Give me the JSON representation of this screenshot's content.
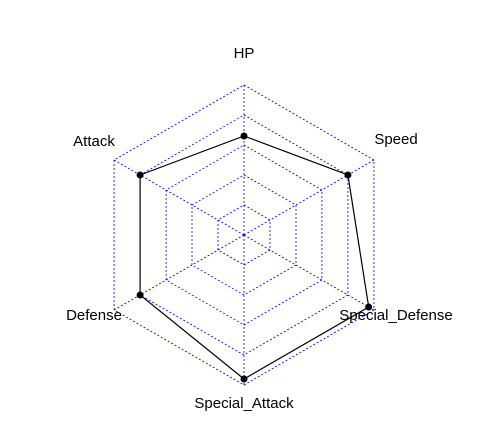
{
  "chart_data": {
    "type": "radar",
    "axes": [
      "HP",
      "Speed",
      "Special_Defense",
      "Special_Attack",
      "Defense",
      "Attack"
    ],
    "range": [
      0,
      5
    ],
    "grid_levels": 5,
    "series": [
      {
        "values": [
          3.3,
          4.0,
          4.8,
          4.8,
          4.0,
          4.0
        ]
      }
    ],
    "colors": {
      "grid": "#0000cc",
      "series_line": "#000000",
      "series_point": "#000000"
    }
  }
}
